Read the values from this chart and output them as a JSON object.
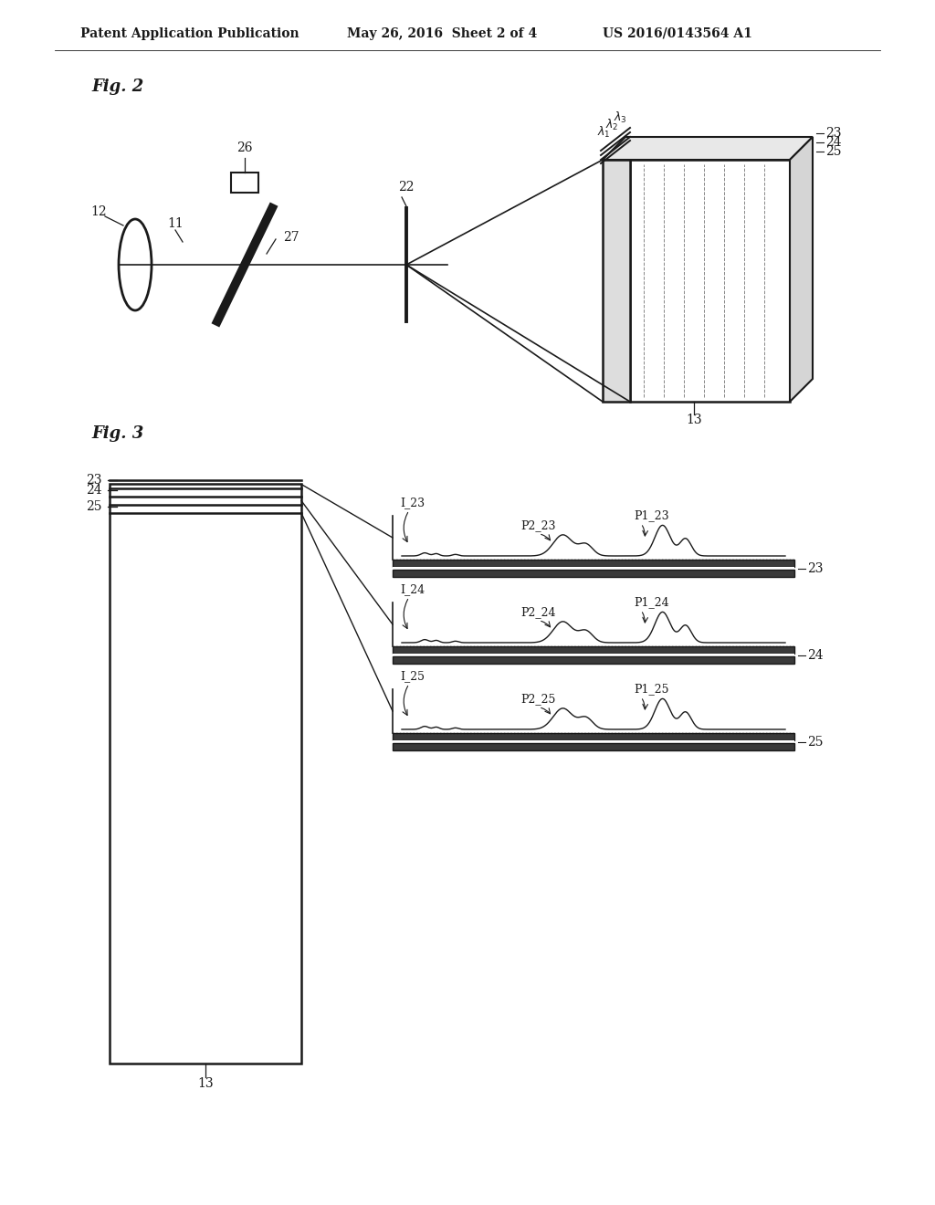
{
  "bg_color": "#ffffff",
  "lc": "#1a1a1a",
  "gray": "#888888",
  "darkgray": "#555555",
  "header_left": "Patent Application Publication",
  "header_mid": "May 26, 2016  Sheet 2 of 4",
  "header_right": "US 2016/0143564 A1",
  "fig2_label": "Fig. 2",
  "fig3_label": "Fig. 3"
}
